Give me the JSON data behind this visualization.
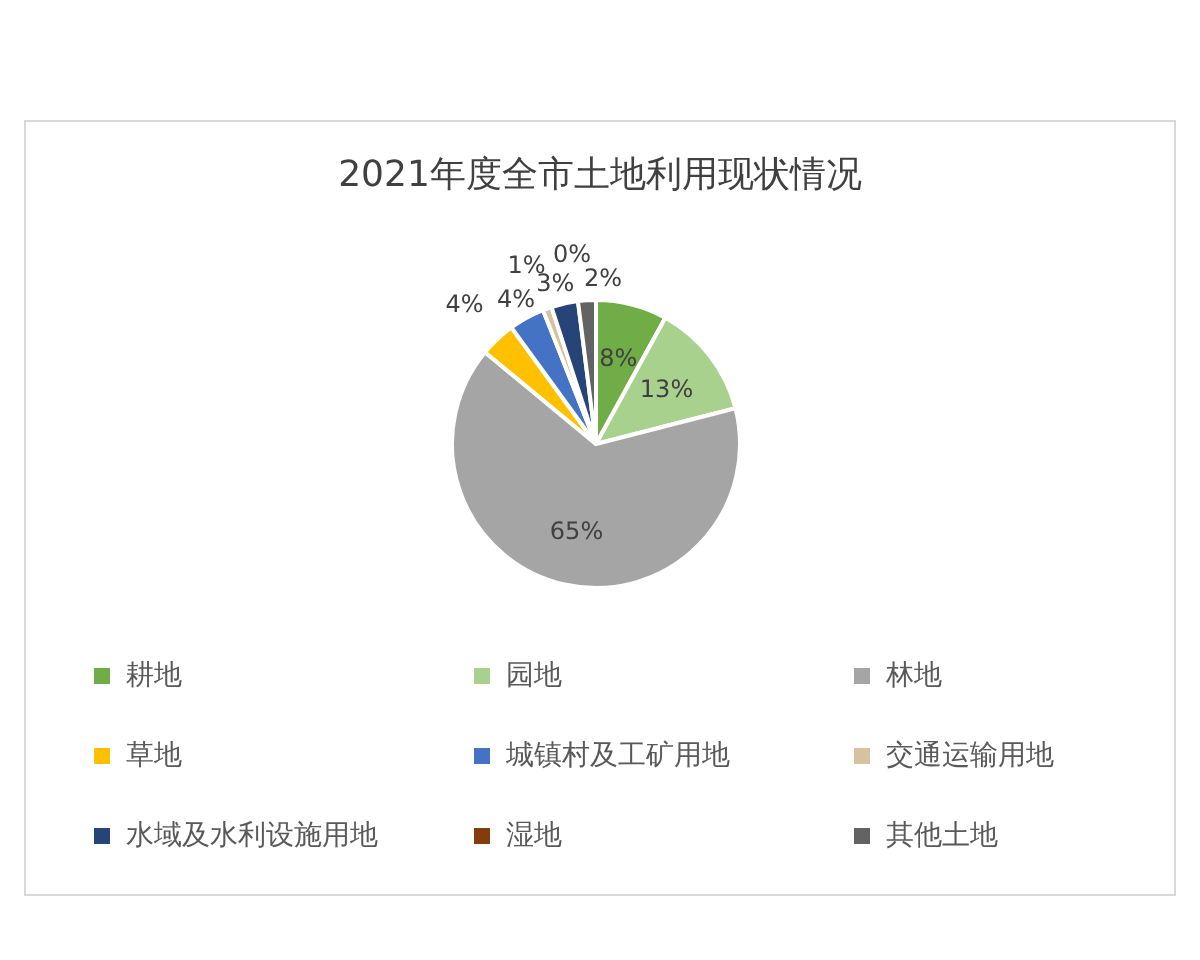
{
  "chart_data": {
    "type": "pie",
    "title": "2021年度全市土地利用现状情况",
    "categories": [
      "耕地",
      "园地",
      "林地",
      "草地",
      "城镇村及工矿用地",
      "交通运输用地",
      "水域及水利设施用地",
      "湿地",
      "其他土地"
    ],
    "values": [
      8,
      13,
      65,
      4,
      4,
      1,
      3,
      0,
      2
    ],
    "colors": [
      "#70ad47",
      "#a9d18e",
      "#a5a5a5",
      "#ffc000",
      "#4472c4",
      "#d6c29e",
      "#264478",
      "#843c0c",
      "#636363"
    ],
    "value_labels": [
      "8%",
      "13%",
      "65%",
      "4%",
      "4%",
      "1%",
      "3%",
      "0%",
      "2%"
    ],
    "legend": "bottom"
  }
}
